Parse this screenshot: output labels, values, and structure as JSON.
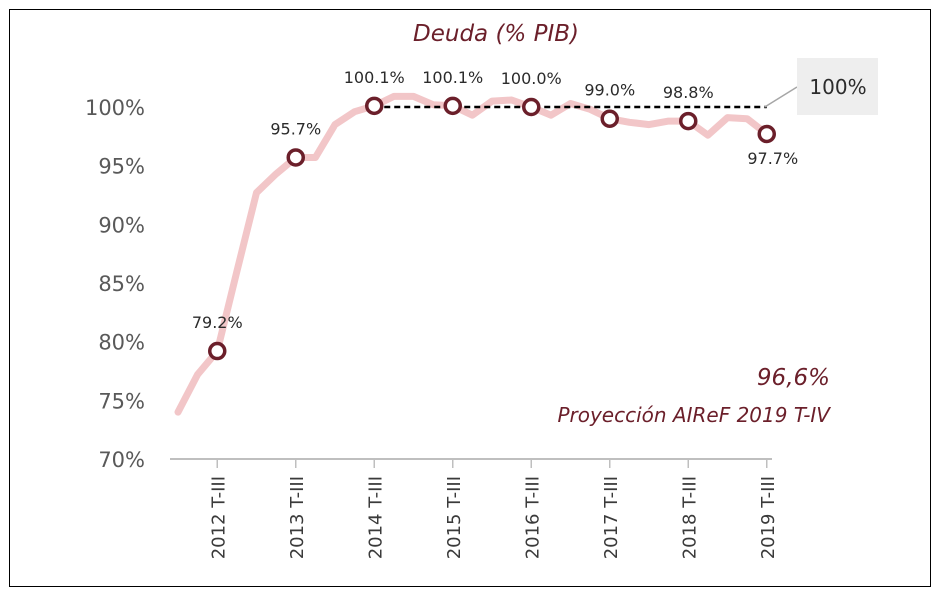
{
  "chart_data": {
    "type": "line",
    "title": "Deuda (% PIB)",
    "ylim": [
      70,
      100
    ],
    "yticks": [
      "70%",
      "75%",
      "80%",
      "85%",
      "90%",
      "95%",
      "100%"
    ],
    "ytick_values": [
      70,
      75,
      80,
      85,
      90,
      95,
      100
    ],
    "categories": [
      "2012 T-III",
      "2013 T-III",
      "2014 T-III",
      "2015 T-III",
      "2016 T-III",
      "2017 T-III",
      "2018 T-III",
      "2019 T-III"
    ],
    "series": [
      {
        "color": "#f2c6c8",
        "x": [
          2011.5,
          2011.75,
          2012.0,
          2012.25,
          2012.5,
          2012.75,
          2013.0,
          2013.25,
          2013.5,
          2013.75,
          2014.0,
          2014.25,
          2014.5,
          2014.75,
          2015.0,
          2015.25,
          2015.5,
          2015.75,
          2016.0,
          2016.25,
          2016.5,
          2016.75,
          2017.0,
          2017.25,
          2017.5,
          2017.75,
          2018.0,
          2018.25,
          2018.5,
          2018.75,
          2019.0,
          2019.25,
          2019.5,
          2019.75
        ],
        "values": [
          74.0,
          77.2,
          79.2,
          86.0,
          92.7,
          94.3,
          95.7,
          95.7,
          98.5,
          99.6,
          100.1,
          100.9,
          100.9,
          100.2,
          100.1,
          99.3,
          100.5,
          100.6,
          100.0,
          99.3,
          100.3,
          99.8,
          99.0,
          98.7,
          98.5,
          98.8,
          98.8,
          97.6,
          99.1,
          99.0,
          97.7,
          null,
          null,
          null
        ]
      }
    ],
    "markers": [
      {
        "x": 2012.0,
        "value": 79.2,
        "label": "79.2%"
      },
      {
        "x": 2013.0,
        "value": 95.7,
        "label": "95.7%"
      },
      {
        "x": 2014.0,
        "value": 100.1,
        "label": "100.1%"
      },
      {
        "x": 2015.0,
        "value": 100.1,
        "label": "100.1%"
      },
      {
        "x": 2016.0,
        "value": 100.0,
        "label": "100.0%"
      },
      {
        "x": 2017.0,
        "value": 99.0,
        "label": "99.0%"
      },
      {
        "x": 2018.0,
        "value": 98.8,
        "label": "98.8%"
      },
      {
        "x": 2019.0,
        "value": 97.7,
        "label": "97.7%"
      }
    ],
    "reference_line": {
      "value": 100,
      "x_from": 2014.0,
      "x_to": 2019.0,
      "label": "100%",
      "style": "dashed"
    },
    "annotation": {
      "value": "96,6%",
      "text": "Proyección AIReF 2019 T-IV"
    },
    "colors": {
      "line": "#f2c6c8",
      "marker": "#6b1f2a",
      "title": "#6b1f2a",
      "reference": "#000000",
      "ref_box": "#eeeeee"
    },
    "grid": false,
    "legend": "none"
  }
}
